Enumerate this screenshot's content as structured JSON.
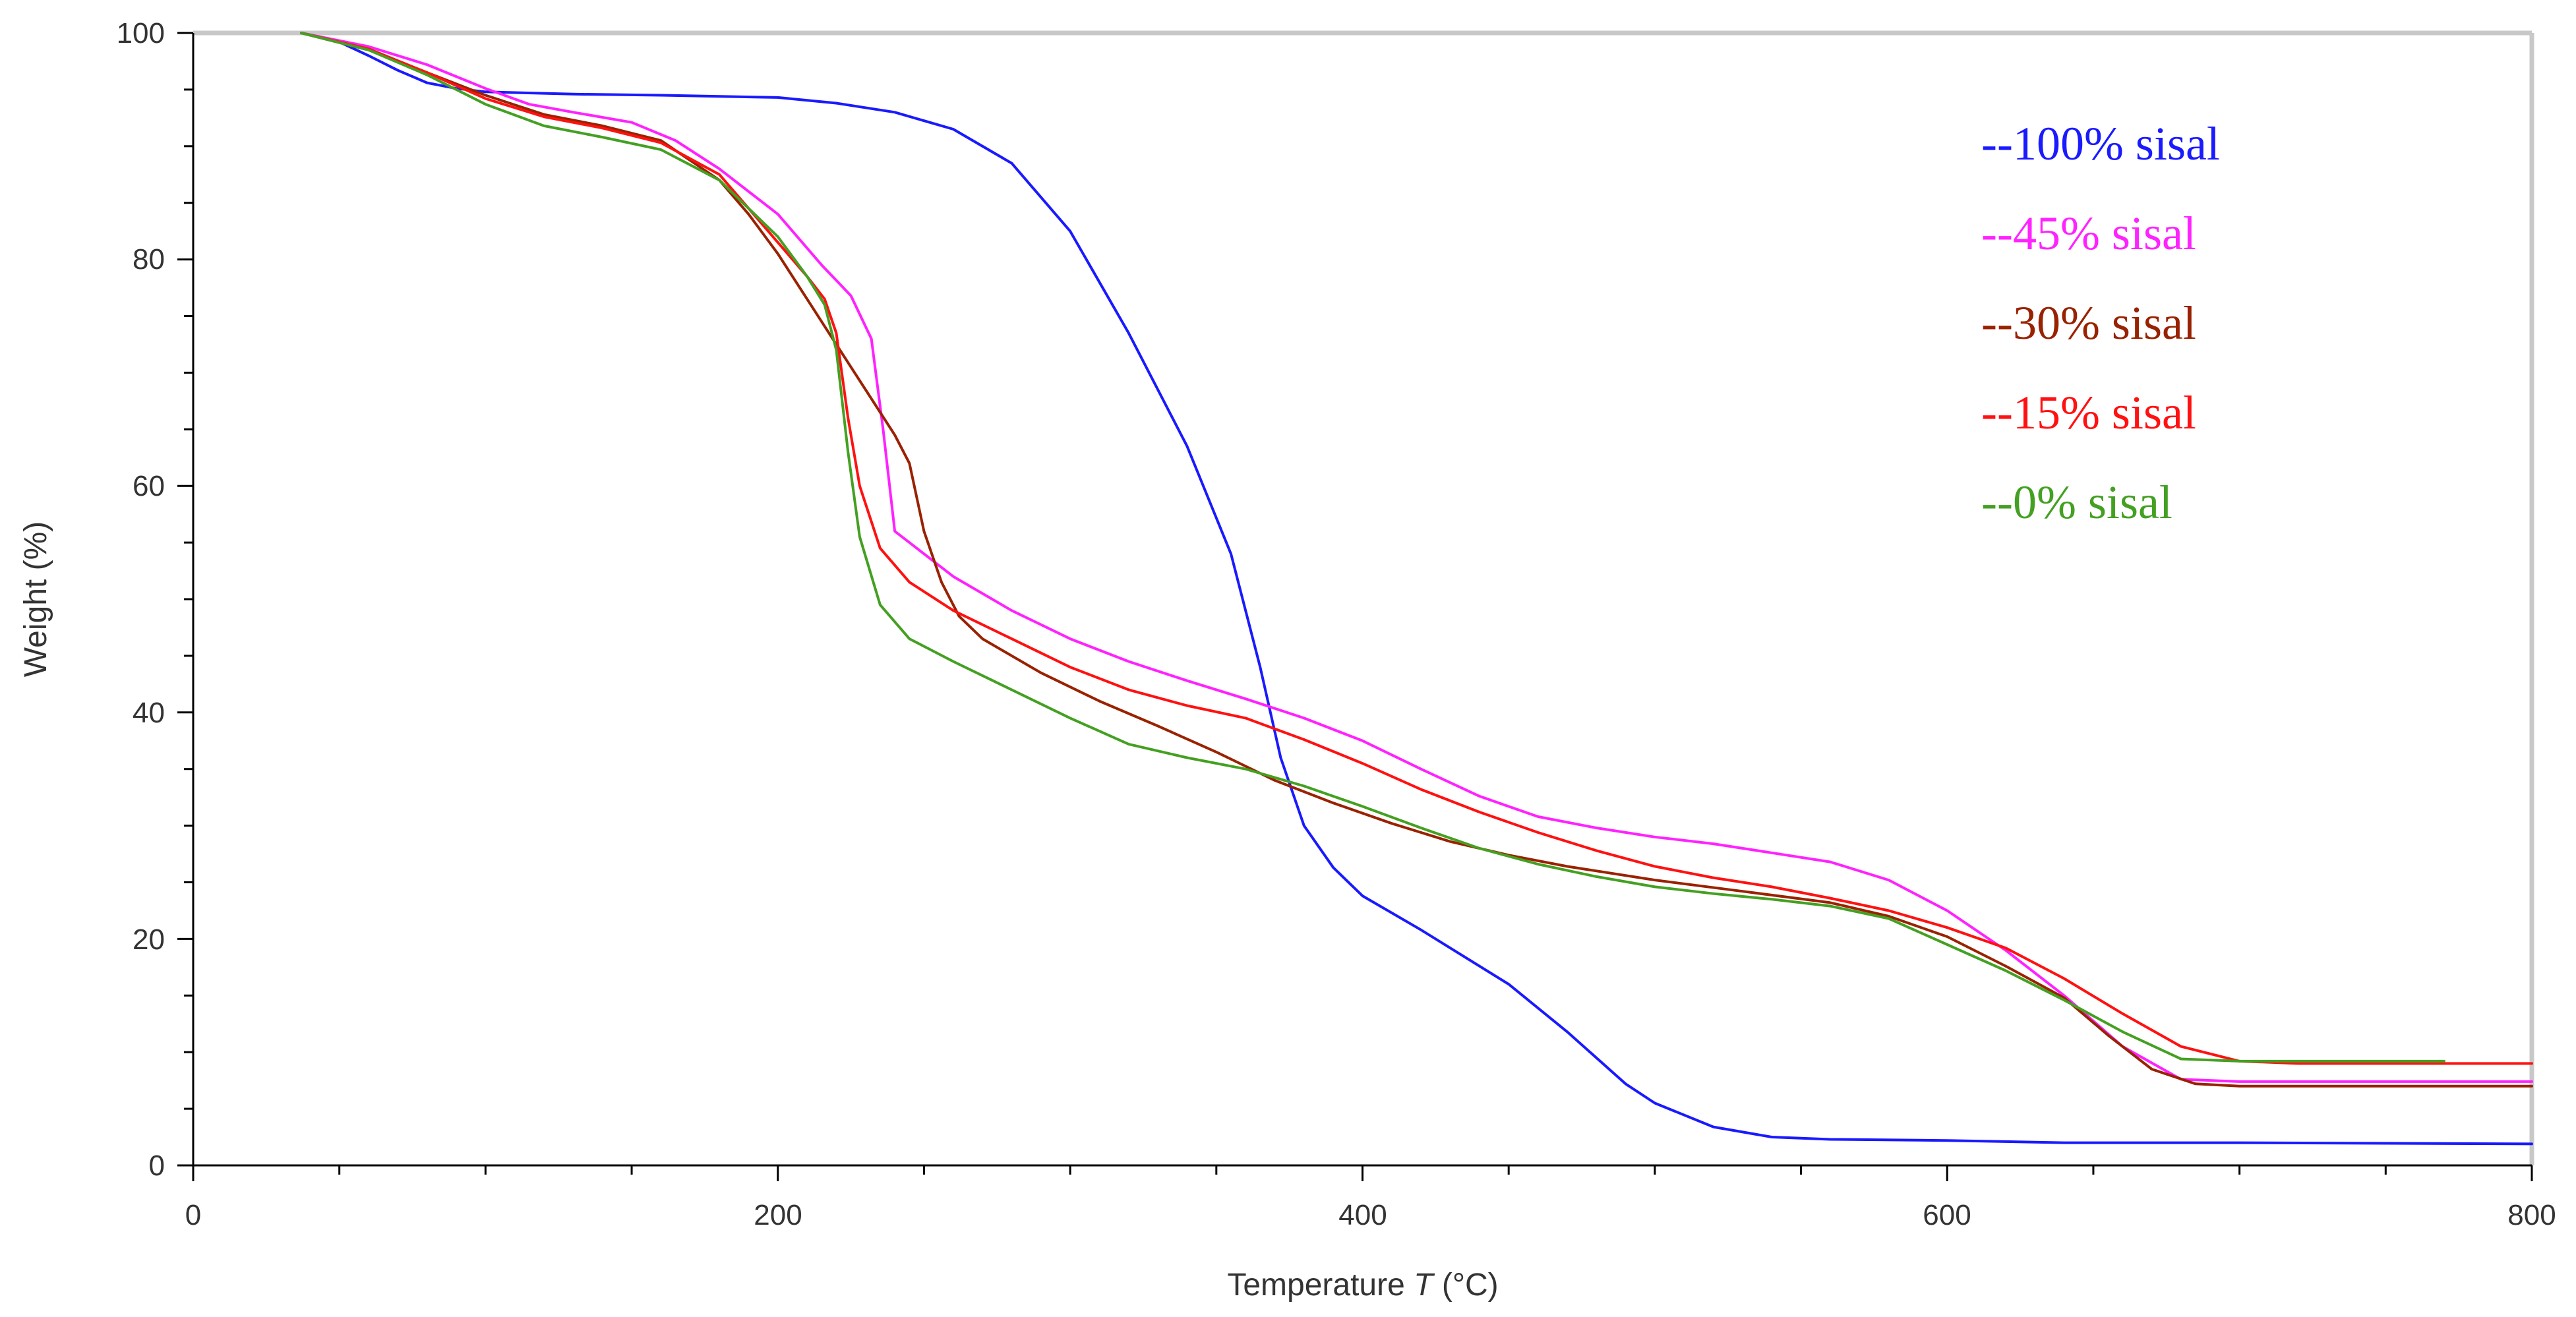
{
  "chart_data": {
    "type": "line",
    "title": "",
    "xlabel": "Temperature",
    "xlabel_symbol": "T",
    "xlabel_unit": "(°C)",
    "ylabel": "Weight  (%)",
    "xlim": [
      0,
      800
    ],
    "ylim": [
      0,
      100
    ],
    "x_ticks": [
      "0",
      "200",
      "400",
      "600",
      "800"
    ],
    "y_ticks": [
      "0",
      "20",
      "40",
      "60",
      "80",
      "100"
    ],
    "grid": false,
    "legend_position": "top-right",
    "series": [
      {
        "name": "--100% sisal",
        "color": "#1a1aff",
        "points": [
          [
            37,
            100
          ],
          [
            50,
            99.2
          ],
          [
            60,
            98
          ],
          [
            70,
            96.7
          ],
          [
            80,
            95.6
          ],
          [
            90,
            95.1
          ],
          [
            100,
            94.8
          ],
          [
            130,
            94.6
          ],
          [
            160,
            94.5
          ],
          [
            200,
            94.3
          ],
          [
            220,
            93.8
          ],
          [
            240,
            93
          ],
          [
            260,
            91.5
          ],
          [
            280,
            88.5
          ],
          [
            300,
            82.5
          ],
          [
            320,
            73.5
          ],
          [
            340,
            63.5
          ],
          [
            355,
            54
          ],
          [
            365,
            44
          ],
          [
            372,
            36
          ],
          [
            380,
            30
          ],
          [
            390,
            26.3
          ],
          [
            400,
            23.8
          ],
          [
            420,
            20.8
          ],
          [
            450,
            16
          ],
          [
            470,
            11.8
          ],
          [
            490,
            7.2
          ],
          [
            500,
            5.5
          ],
          [
            520,
            3.4
          ],
          [
            540,
            2.5
          ],
          [
            560,
            2.3
          ],
          [
            600,
            2.2
          ],
          [
            640,
            2.0
          ],
          [
            700,
            2.0
          ],
          [
            800,
            1.9
          ]
        ]
      },
      {
        "name": "--45% sisal",
        "color": "#ff22ff",
        "points": [
          [
            37,
            100
          ],
          [
            60,
            98.8
          ],
          [
            80,
            97.2
          ],
          [
            100,
            95.1
          ],
          [
            115,
            93.7
          ],
          [
            130,
            93
          ],
          [
            150,
            92.1
          ],
          [
            165,
            90.5
          ],
          [
            180,
            88
          ],
          [
            200,
            84
          ],
          [
            215,
            79.5
          ],
          [
            225,
            76.8
          ],
          [
            232,
            73
          ],
          [
            236,
            65
          ],
          [
            240,
            56
          ],
          [
            245,
            55
          ],
          [
            260,
            52
          ],
          [
            280,
            49
          ],
          [
            300,
            46.5
          ],
          [
            320,
            44.5
          ],
          [
            340,
            42.8
          ],
          [
            360,
            41.2
          ],
          [
            380,
            39.5
          ],
          [
            400,
            37.5
          ],
          [
            420,
            35
          ],
          [
            440,
            32.6
          ],
          [
            460,
            30.8
          ],
          [
            480,
            29.8
          ],
          [
            500,
            29
          ],
          [
            520,
            28.4
          ],
          [
            540,
            27.6
          ],
          [
            560,
            26.8
          ],
          [
            580,
            25.2
          ],
          [
            600,
            22.5
          ],
          [
            620,
            19
          ],
          [
            640,
            15
          ],
          [
            660,
            10.5
          ],
          [
            680,
            7.6
          ],
          [
            700,
            7.4
          ],
          [
            800,
            7.4
          ]
        ]
      },
      {
        "name": "--30% sisal",
        "color": "#992200",
        "points": [
          [
            37,
            100
          ],
          [
            60,
            98.5
          ],
          [
            80,
            96.5
          ],
          [
            100,
            94.5
          ],
          [
            120,
            92.8
          ],
          [
            140,
            91.8
          ],
          [
            160,
            90.5
          ],
          [
            180,
            87
          ],
          [
            190,
            84
          ],
          [
            200,
            80.5
          ],
          [
            210,
            76.5
          ],
          [
            220,
            72.5
          ],
          [
            230,
            68.5
          ],
          [
            240,
            64.5
          ],
          [
            245,
            62
          ],
          [
            250,
            56
          ],
          [
            256,
            51.5
          ],
          [
            262,
            48.5
          ],
          [
            270,
            46.5
          ],
          [
            290,
            43.5
          ],
          [
            310,
            41
          ],
          [
            330,
            38.8
          ],
          [
            350,
            36.5
          ],
          [
            370,
            34
          ],
          [
            390,
            32
          ],
          [
            410,
            30.2
          ],
          [
            430,
            28.6
          ],
          [
            450,
            27.4
          ],
          [
            470,
            26.4
          ],
          [
            500,
            25.2
          ],
          [
            530,
            24.2
          ],
          [
            560,
            23.2
          ],
          [
            580,
            22
          ],
          [
            600,
            20.2
          ],
          [
            620,
            17.6
          ],
          [
            640,
            14.8
          ],
          [
            655,
            11.5
          ],
          [
            670,
            8.5
          ],
          [
            685,
            7.2
          ],
          [
            700,
            7.0
          ],
          [
            800,
            7.0
          ]
        ]
      },
      {
        "name": "--15% sisal",
        "color": "#ff1111",
        "points": [
          [
            37,
            100
          ],
          [
            60,
            98.6
          ],
          [
            80,
            96.5
          ],
          [
            100,
            94.2
          ],
          [
            120,
            92.6
          ],
          [
            140,
            91.6
          ],
          [
            160,
            90.3
          ],
          [
            180,
            87.5
          ],
          [
            200,
            81.5
          ],
          [
            210,
            78.5
          ],
          [
            216,
            76.5
          ],
          [
            220,
            73.5
          ],
          [
            224,
            66
          ],
          [
            228,
            60
          ],
          [
            235,
            54.5
          ],
          [
            245,
            51.5
          ],
          [
            260,
            49
          ],
          [
            280,
            46.5
          ],
          [
            300,
            44
          ],
          [
            320,
            42
          ],
          [
            340,
            40.6
          ],
          [
            360,
            39.5
          ],
          [
            380,
            37.6
          ],
          [
            400,
            35.5
          ],
          [
            420,
            33.2
          ],
          [
            440,
            31.2
          ],
          [
            460,
            29.4
          ],
          [
            480,
            27.8
          ],
          [
            500,
            26.4
          ],
          [
            520,
            25.4
          ],
          [
            540,
            24.6
          ],
          [
            560,
            23.6
          ],
          [
            580,
            22.5
          ],
          [
            600,
            21
          ],
          [
            620,
            19.2
          ],
          [
            640,
            16.5
          ],
          [
            660,
            13.4
          ],
          [
            680,
            10.5
          ],
          [
            700,
            9.2
          ],
          [
            720,
            9.0
          ],
          [
            800,
            9.0
          ]
        ]
      },
      {
        "name": "--0% sisal",
        "color": "#44a022",
        "points": [
          [
            37,
            100
          ],
          [
            60,
            98.5
          ],
          [
            80,
            96.3
          ],
          [
            100,
            93.7
          ],
          [
            120,
            91.8
          ],
          [
            140,
            90.8
          ],
          [
            160,
            89.7
          ],
          [
            180,
            87
          ],
          [
            200,
            82
          ],
          [
            210,
            78.5
          ],
          [
            216,
            76
          ],
          [
            220,
            72
          ],
          [
            224,
            63
          ],
          [
            228,
            55.5
          ],
          [
            235,
            49.5
          ],
          [
            245,
            46.5
          ],
          [
            260,
            44.5
          ],
          [
            280,
            42
          ],
          [
            300,
            39.5
          ],
          [
            320,
            37.2
          ],
          [
            340,
            36
          ],
          [
            360,
            35
          ],
          [
            380,
            33.5
          ],
          [
            400,
            31.7
          ],
          [
            420,
            29.8
          ],
          [
            440,
            28
          ],
          [
            460,
            26.6
          ],
          [
            480,
            25.5
          ],
          [
            500,
            24.6
          ],
          [
            520,
            24
          ],
          [
            540,
            23.5
          ],
          [
            560,
            22.9
          ],
          [
            580,
            21.8
          ],
          [
            600,
            19.5
          ],
          [
            620,
            17.2
          ],
          [
            640,
            14.6
          ],
          [
            660,
            11.8
          ],
          [
            680,
            9.4
          ],
          [
            700,
            9.2
          ],
          [
            770,
            9.2
          ]
        ]
      }
    ]
  }
}
